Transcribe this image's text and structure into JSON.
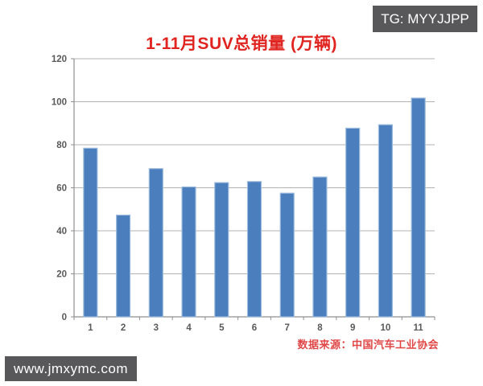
{
  "watermarks": {
    "top_right": "TG: MYYJJPP",
    "bottom_left": "www.jmxymc.com",
    "background_color": "#58585a",
    "text_color": "#ffffff"
  },
  "chart_data": {
    "type": "bar",
    "title": "1-11月SUV总销量 (万辆)",
    "title_color": "#e02420",
    "categories": [
      "1",
      "2",
      "3",
      "4",
      "5",
      "6",
      "7",
      "8",
      "9",
      "10",
      "11"
    ],
    "values": [
      78.4,
      47.3,
      68.9,
      60.4,
      62.4,
      62.9,
      57.5,
      65,
      87.7,
      89.3,
      101.7
    ],
    "xlabel": "",
    "ylabel": "",
    "ylim": [
      0,
      120
    ],
    "yticks": [
      0,
      20,
      40,
      60,
      80,
      100,
      120
    ],
    "grid": true,
    "legend": false,
    "bar_color": "#4b7ebc",
    "bar_border_color": "#9cbbde",
    "axis_color": "#8f8f8f",
    "gridline_color": "#b3b3b3",
    "tick_label_color": "#595959",
    "source_note": "数据来源：中国汽车工业协会",
    "source_color": "#e04848"
  }
}
